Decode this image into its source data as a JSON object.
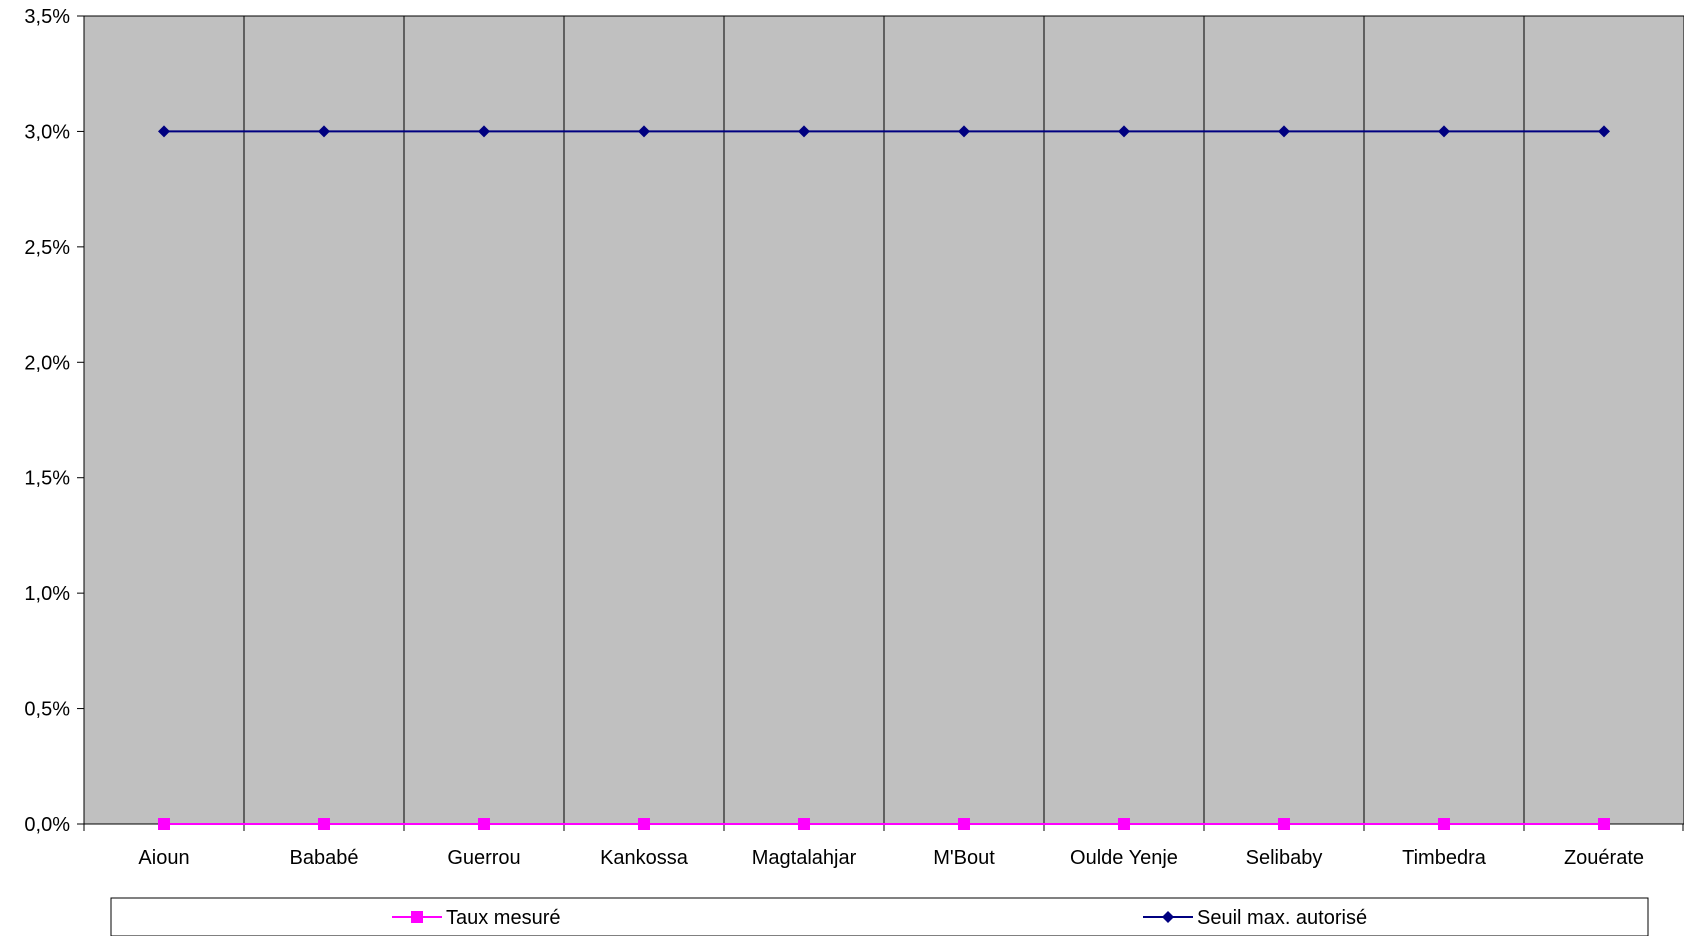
{
  "chart_data": {
    "type": "line",
    "categories": [
      "Aioun",
      "Bababé",
      "Guerrou",
      "Kankossa",
      "Magtalahjar",
      "M'Bout",
      "Oulde Yenje",
      "Selibaby",
      "Timbedra",
      "Zouérate"
    ],
    "series": [
      {
        "name": "Taux mesuré",
        "values": [
          0,
          0,
          0,
          0,
          0,
          0,
          0,
          0,
          0,
          0
        ],
        "color": "#FF00FF",
        "marker": "square"
      },
      {
        "name": "Seuil max. autorisé",
        "values": [
          3.0,
          3.0,
          3.0,
          3.0,
          3.0,
          3.0,
          3.0,
          3.0,
          3.0,
          3.0
        ],
        "color": "#000080",
        "marker": "diamond"
      }
    ],
    "ylim": [
      0,
      3.5
    ],
    "yticks": [
      "0,0%",
      "0,5%",
      "1,0%",
      "1,5%",
      "2,0%",
      "2,5%",
      "3,0%",
      "3,5%"
    ],
    "title": "",
    "xlabel": "",
    "ylabel": "",
    "plot_background": "#C0C0C0",
    "grid": "vertical category dividers",
    "legend_position": "bottom"
  }
}
